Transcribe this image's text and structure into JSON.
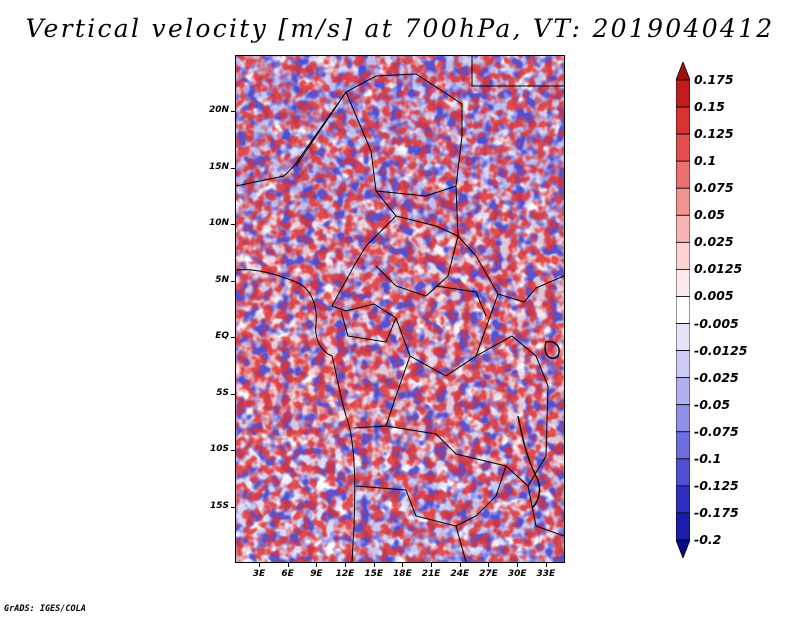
{
  "title": "Vertical velocity [m/s] at 700hPa, VT: 2019040412",
  "credit": "GrADS: IGES/COLA",
  "map": {
    "lat_ticks": [
      {
        "label": "20N",
        "lat": 20
      },
      {
        "label": "15N",
        "lat": 15
      },
      {
        "label": "10N",
        "lat": 10
      },
      {
        "label": "5N",
        "lat": 5
      },
      {
        "label": "EQ",
        "lat": 0
      },
      {
        "label": "5S",
        "lat": -5
      },
      {
        "label": "10S",
        "lat": -10
      },
      {
        "label": "15S",
        "lat": -15
      }
    ],
    "lon_ticks": [
      {
        "label": "3E",
        "lon": 3
      },
      {
        "label": "6E",
        "lon": 6
      },
      {
        "label": "9E",
        "lon": 9
      },
      {
        "label": "12E",
        "lon": 12
      },
      {
        "label": "15E",
        "lon": 15
      },
      {
        "label": "18E",
        "lon": 18
      },
      {
        "label": "21E",
        "lon": 21
      },
      {
        "label": "24E",
        "lon": 24
      },
      {
        "label": "27E",
        "lon": 27
      },
      {
        "label": "30E",
        "lon": 30
      },
      {
        "label": "33E",
        "lon": 33
      }
    ],
    "lat_range": [
      -20,
      25
    ],
    "lon_range": [
      0.5,
      35
    ]
  },
  "colorbar": {
    "labels": [
      "0.175",
      "0.15",
      "0.125",
      "0.1",
      "0.075",
      "0.05",
      "0.025",
      "0.0125",
      "0.005",
      "-0.005",
      "-0.0125",
      "-0.025",
      "-0.05",
      "-0.075",
      "-0.1",
      "-0.125",
      "-0.175",
      "-0.2"
    ],
    "colors": [
      "#a01010",
      "#c01e1e",
      "#d63232",
      "#e45050",
      "#ec7070",
      "#f29494",
      "#f6b4b4",
      "#fad2d2",
      "#fdeaea",
      "#ffffff",
      "#e4e4fa",
      "#ccccf6",
      "#b0b0f0",
      "#9090e8",
      "#6e6ee0",
      "#5050d0",
      "#3030c0",
      "#1c1caa",
      "#0a0a8c"
    ]
  }
}
